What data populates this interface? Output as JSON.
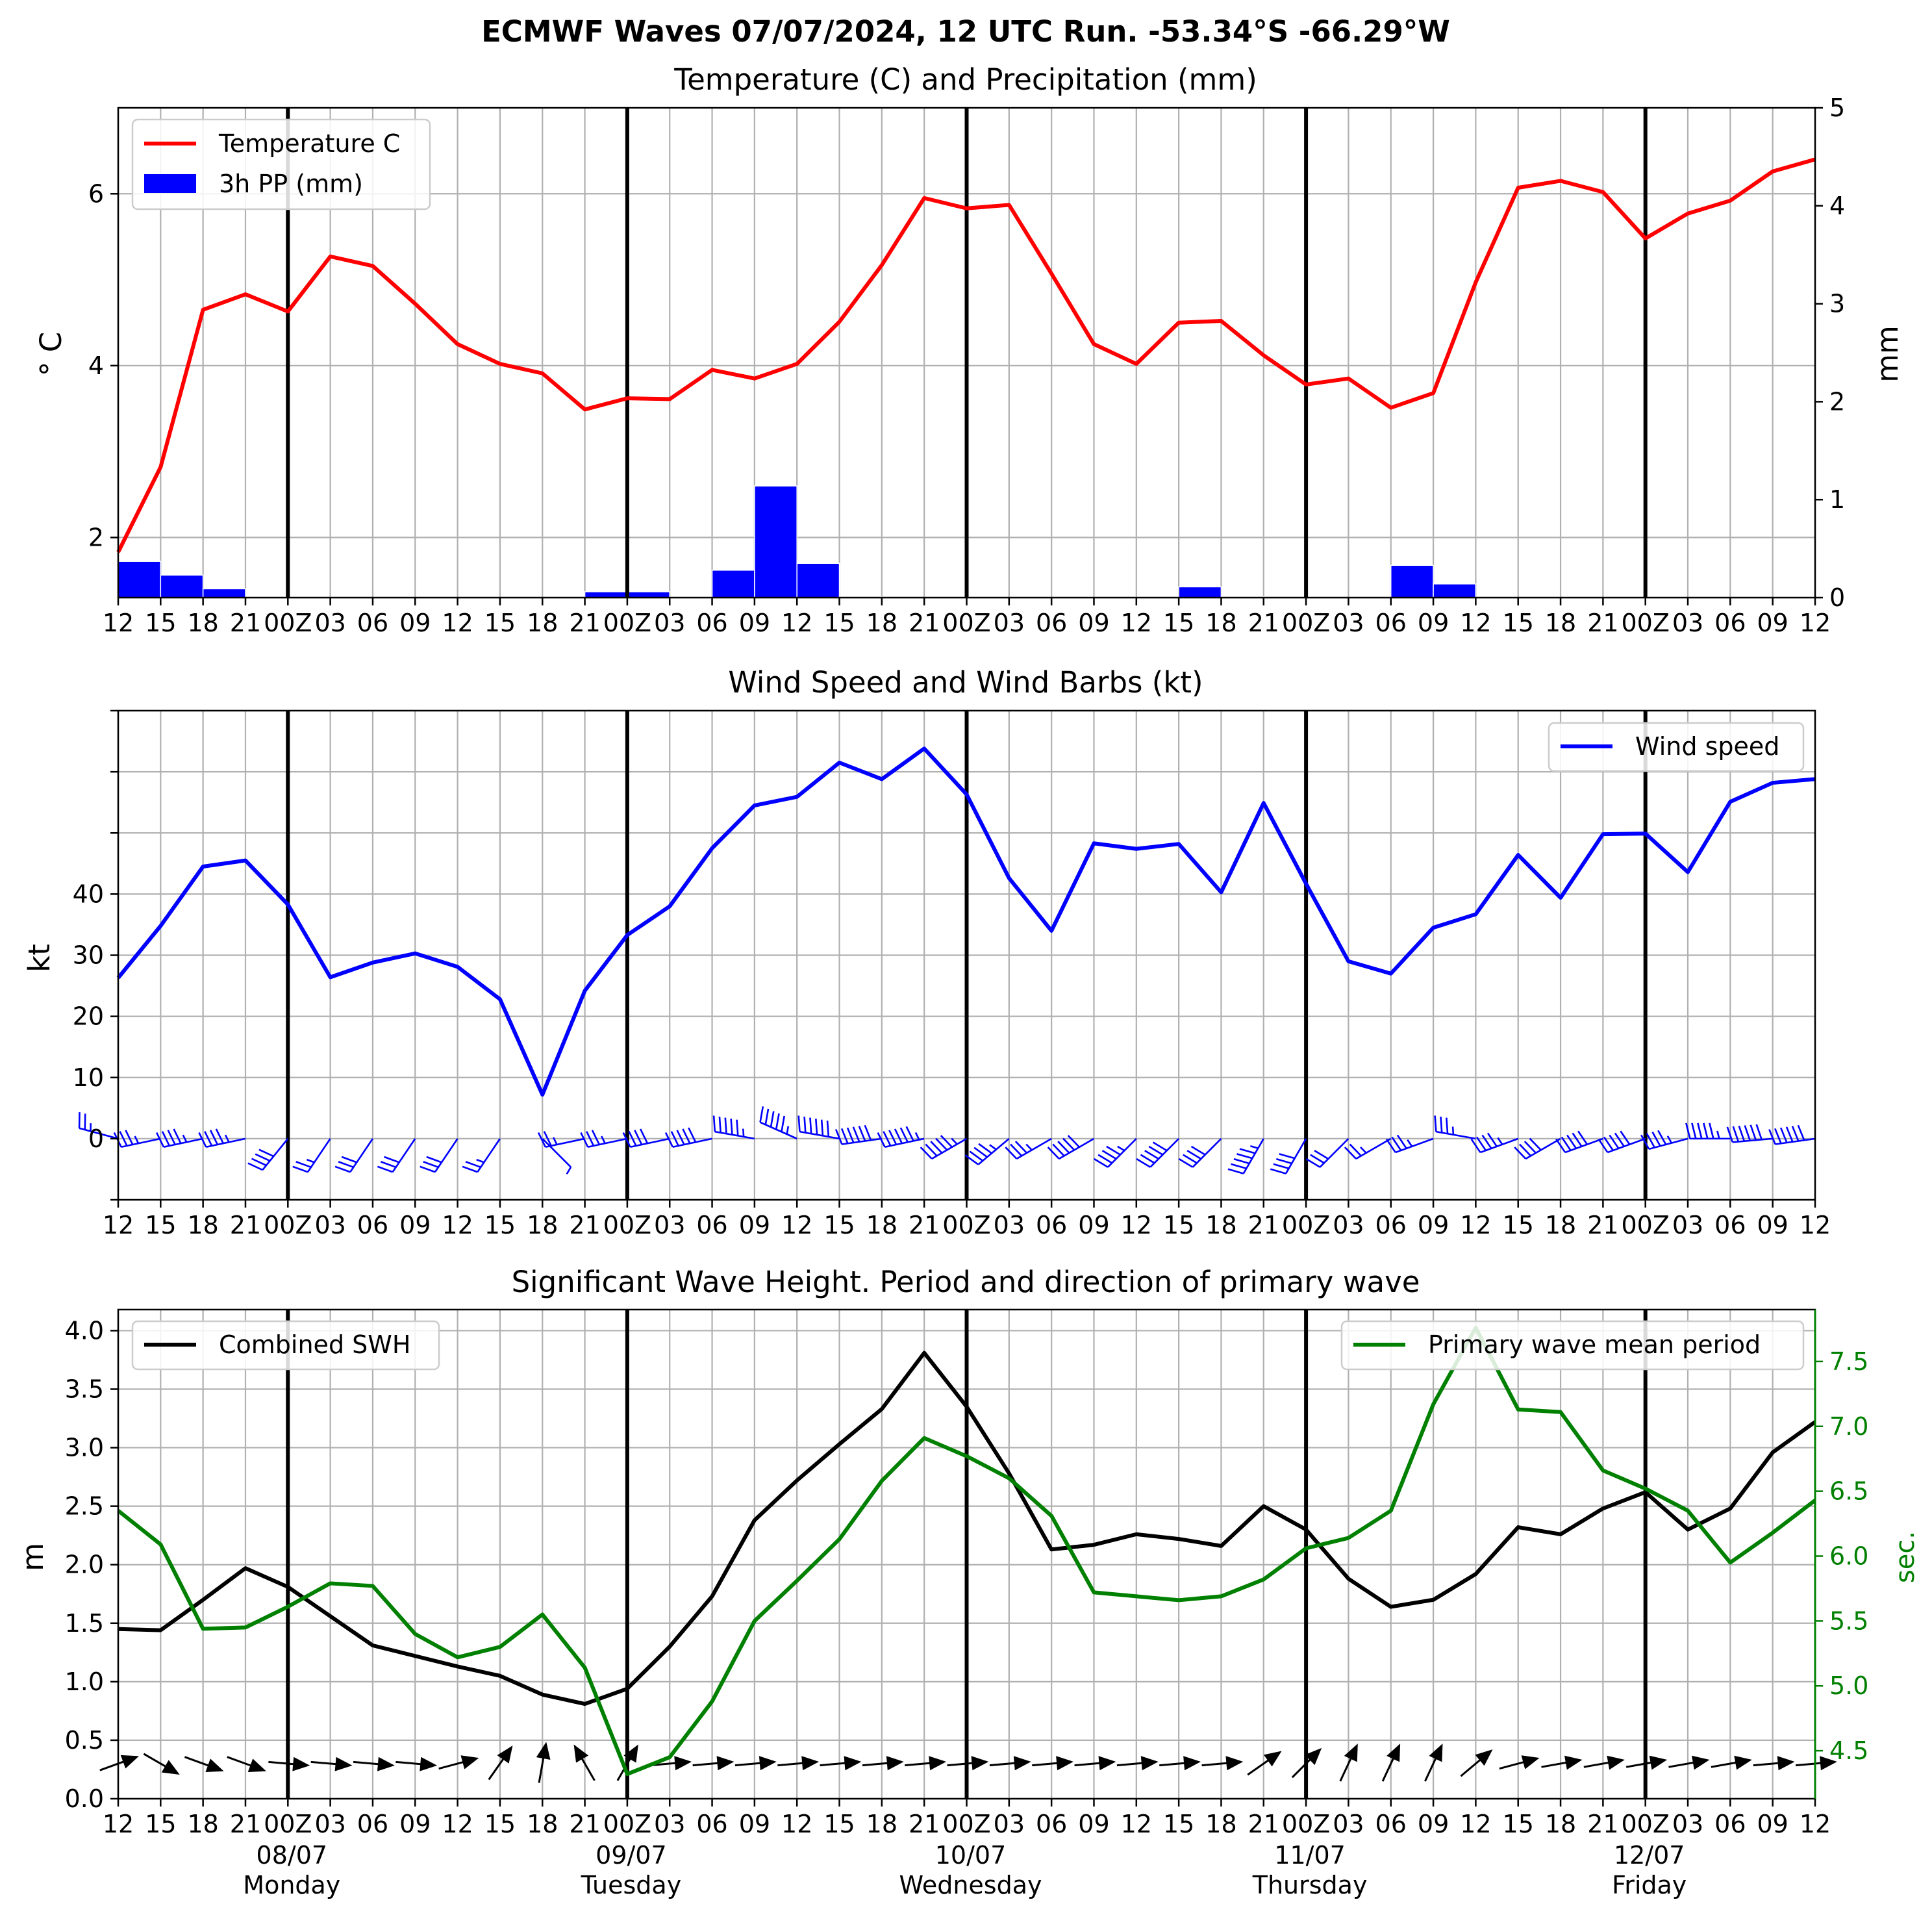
{
  "suptitle": "ECMWF Waves 07/07/2024, 12 UTC Run. -53.34°S -66.29°W",
  "colors": {
    "temperature": "#ff0000",
    "precip": "#0000ff",
    "wind": "#0000ff",
    "swh": "#000000",
    "period": "#008000"
  },
  "x_ticks": [
    "12",
    "15",
    "18",
    "21",
    "00Z",
    "03",
    "06",
    "09",
    "12",
    "15",
    "18",
    "21",
    "00Z",
    "03",
    "06",
    "09",
    "12",
    "15",
    "18",
    "21",
    "00Z",
    "03",
    "06",
    "09",
    "12",
    "15",
    "18",
    "21",
    "00Z",
    "03",
    "06",
    "09",
    "12",
    "15",
    "18",
    "21",
    "00Z",
    "03",
    "06",
    "09",
    "12"
  ],
  "day_labels": [
    {
      "date": "08/07",
      "day": "Monday"
    },
    {
      "date": "09/07",
      "day": "Tuesday"
    },
    {
      "date": "10/07",
      "day": "Wednesday"
    },
    {
      "date": "11/07",
      "day": "Thursday"
    },
    {
      "date": "12/07",
      "day": "Friday"
    }
  ],
  "chart_data": [
    {
      "type": "line",
      "title": "Temperature (C) and Precipitation (mm)",
      "ylabel": "° C",
      "ylabel_right": "mm",
      "ylim": [
        1.3,
        7.0
      ],
      "ylim_right": [
        0,
        5
      ],
      "yticks": [
        "2",
        "4",
        "6"
      ],
      "yticks_right": [
        "0",
        "1",
        "2",
        "3",
        "4",
        "5"
      ],
      "legend": [
        "Temperature C",
        "3h PP (mm)"
      ],
      "series": [
        {
          "name": "Temperature C",
          "axis": "left",
          "values": [
            1.83,
            2.82,
            4.65,
            4.83,
            4.63,
            5.27,
            5.16,
            4.72,
            4.25,
            4.02,
            3.91,
            3.49,
            3.62,
            3.61,
            3.95,
            3.85,
            4.02,
            4.51,
            5.17,
            5.95,
            5.83,
            5.87,
            5.07,
            4.25,
            4.02,
            4.5,
            4.52,
            4.12,
            3.78,
            3.85,
            3.51,
            3.68,
            4.97,
            6.07,
            6.15,
            6.02,
            5.48,
            5.77,
            5.92,
            6.26,
            6.4
          ]
        },
        {
          "name": "3h PP (mm)",
          "axis": "right",
          "type": "bar",
          "values": [
            0.37,
            0.23,
            0.09,
            0,
            0,
            0,
            0,
            0,
            0,
            0,
            0,
            0.06,
            0.06,
            0,
            0.28,
            1.14,
            0.35,
            0.01,
            0,
            0,
            0,
            0,
            0,
            0,
            0,
            0.11,
            0.01,
            0.01,
            0,
            0,
            0.33,
            0.14,
            0,
            0,
            0,
            0,
            0,
            0,
            0,
            0
          ]
        }
      ]
    },
    {
      "type": "line",
      "title": "Wind Speed and Wind Barbs (kt)",
      "ylabel": "kt",
      "ylim": [
        -10,
        70
      ],
      "yticks": [
        "0",
        "10",
        "20",
        "30",
        "40"
      ],
      "legend": [
        "Wind speed"
      ],
      "series": [
        {
          "name": "Wind speed",
          "values": [
            26.3,
            34.8,
            44.5,
            45.5,
            38.3,
            26.4,
            28.8,
            30.3,
            28.1,
            22.8,
            7.2,
            24.2,
            33.3,
            38.0,
            47.5,
            54.5,
            55.9,
            61.5,
            58.8,
            63.8,
            56.3,
            42.6,
            34.0,
            48.3,
            47.4,
            48.2,
            40.3,
            54.9,
            41.7,
            29.0,
            27.0,
            34.5,
            36.7,
            46.4,
            39.4,
            49.8,
            49.9,
            43.6,
            55.1,
            58.2,
            58.8
          ]
        },
        {
          "name": "Wind direction (deg, from)",
          "values": [
            285,
            258,
            258,
            258,
            219,
            214,
            214,
            214,
            214,
            214,
            135,
            258,
            258,
            258,
            258,
            280,
            294,
            280,
            262,
            258,
            240,
            230,
            240,
            240,
            225,
            225,
            225,
            210,
            210,
            225,
            240,
            250,
            280,
            250,
            240,
            250,
            250,
            255,
            270,
            265,
            262
          ]
        }
      ]
    },
    {
      "type": "line",
      "title": "Significant Wave Height. Period and direction of primary wave",
      "ylabel": "m",
      "ylabel_right": "sec.",
      "ylim": [
        0,
        4.18
      ],
      "ylim_right": [
        4.13,
        7.9
      ],
      "yticks": [
        "0.0",
        "0.5",
        "1.0",
        "1.5",
        "2.0",
        "2.5",
        "3.0",
        "3.5",
        "4.0"
      ],
      "yticks_right": [
        "4.5",
        "5.0",
        "5.5",
        "6.0",
        "6.5",
        "7.0",
        "7.5"
      ],
      "legend": [
        "Combined SWH",
        "Primary wave mean period"
      ],
      "series": [
        {
          "name": "Combined SWH",
          "axis": "left",
          "values": [
            1.45,
            1.44,
            1.7,
            1.97,
            1.81,
            1.56,
            1.31,
            1.22,
            1.13,
            1.05,
            0.89,
            0.81,
            0.94,
            1.3,
            1.73,
            2.38,
            2.72,
            3.03,
            3.33,
            3.81,
            3.35,
            2.78,
            2.13,
            2.17,
            2.26,
            2.22,
            2.16,
            2.5,
            2.3,
            1.88,
            1.64,
            1.7,
            1.92,
            2.32,
            2.26,
            2.48,
            2.62,
            2.3,
            2.48,
            2.96,
            3.22
          ]
        },
        {
          "name": "Primary wave mean period",
          "axis": "right",
          "values": [
            6.35,
            6.09,
            5.44,
            5.45,
            5.61,
            5.79,
            5.77,
            5.4,
            5.22,
            5.3,
            5.55,
            5.14,
            4.32,
            4.45,
            4.88,
            5.5,
            5.81,
            6.13,
            6.58,
            6.91,
            6.77,
            6.6,
            6.31,
            5.72,
            5.69,
            5.66,
            5.69,
            5.82,
            6.06,
            6.14,
            6.35,
            7.17,
            7.76,
            7.13,
            7.11,
            6.66,
            6.52,
            6.35,
            5.95,
            6.18,
            6.43
          ]
        },
        {
          "name": "Primary wave direction (deg, from)",
          "values": [
            250,
            300,
            290,
            290,
            275,
            275,
            275,
            275,
            255,
            215,
            190,
            150,
            210,
            265,
            265,
            265,
            265,
            265,
            265,
            265,
            265,
            265,
            265,
            265,
            265,
            265,
            265,
            235,
            225,
            205,
            205,
            205,
            230,
            255,
            260,
            260,
            260,
            260,
            260,
            265,
            265
          ]
        }
      ]
    }
  ]
}
